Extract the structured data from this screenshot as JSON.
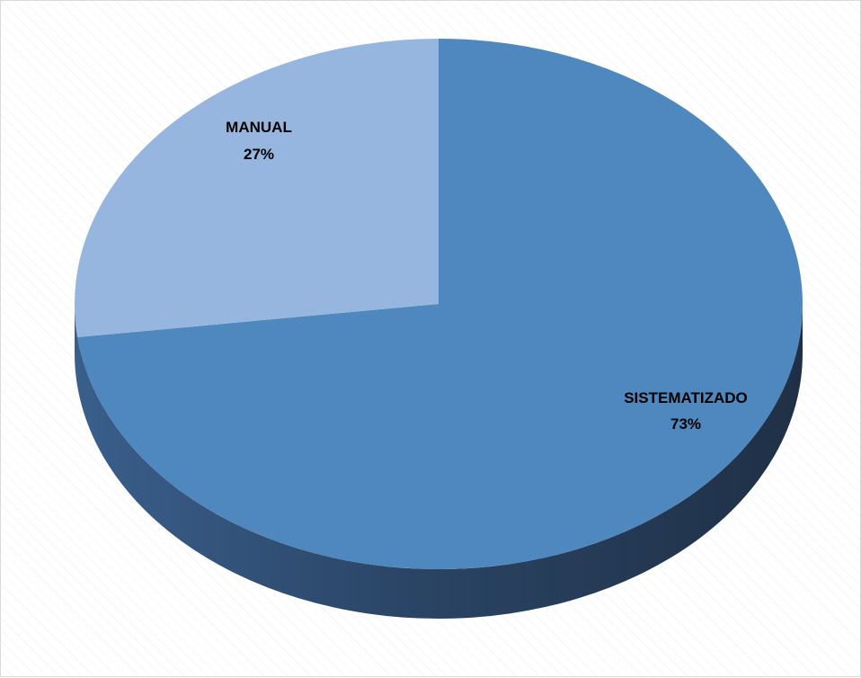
{
  "chart_data": {
    "type": "pie",
    "title": "",
    "categories": [
      "SISTEMATIZADO",
      "MANUAL"
    ],
    "values": [
      73,
      27
    ],
    "labels": [
      {
        "name": "SISTEMATIZADO",
        "percent": "73%"
      },
      {
        "name": "MANUAL",
        "percent": "27%"
      }
    ],
    "colors": {
      "SISTEMATIZADO": "#4F88BE",
      "MANUAL": "#97B6DF",
      "depth_dark": "#22344B",
      "depth_mid": "#2C4A6E"
    },
    "style": "3d",
    "legend": "none",
    "grid": false
  }
}
